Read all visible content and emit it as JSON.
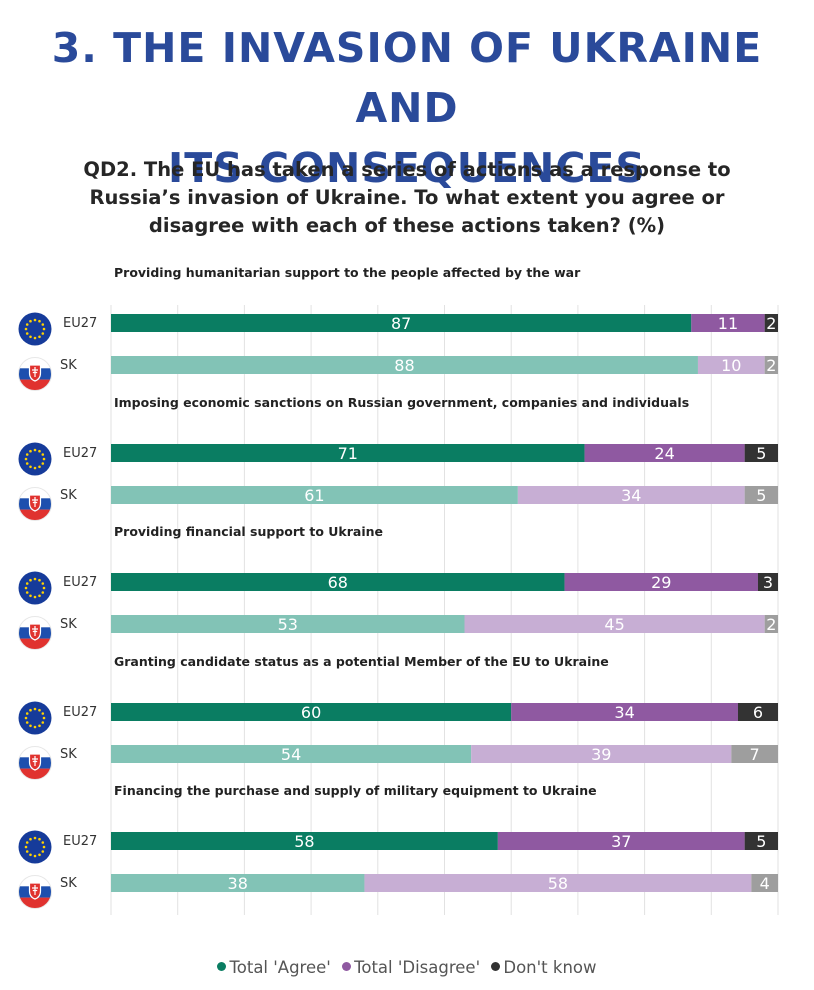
{
  "page": {
    "title_line1": "3. THE INVASION OF UKRAINE AND",
    "title_line2": "ITS CONSEQUENCES",
    "question": "QD2. The EU has taken a series of actions as a response to Russia’s invasion of Ukraine. To what extent you agree or disagree with each of these actions taken? (%)"
  },
  "colors": {
    "title": "#2a4a9a",
    "eu27_agree": "#0a7d62",
    "eu27_disagree": "#8f59a1",
    "eu27_dontknow": "#333333",
    "sk_agree": "#82c3b6",
    "sk_disagree": "#c7aed4",
    "sk_dontknow": "#9e9e9e",
    "eu_flag_bg": "#163b9a",
    "eu_flag_star": "#ffd200",
    "gridline": "#e2e2e2"
  },
  "legend": [
    {
      "label": "Total 'Agree'",
      "color": "#0a7d62"
    },
    {
      "label": "Total 'Disagree'",
      "color": "#8f59a1"
    },
    {
      "label": "Don't know",
      "color": "#333333"
    }
  ],
  "chart_data": {
    "type": "bar",
    "orientation": "horizontal",
    "stacked": true,
    "unit": "%",
    "xlim": [
      0,
      100
    ],
    "grid": true,
    "legend_position": "bottom",
    "series_names": [
      "Total 'Agree'",
      "Total 'Disagree'",
      "Don't know"
    ],
    "groups": [
      {
        "label": "Providing humanitarian support to the people affected by the war",
        "rows": [
          {
            "country": "EU27",
            "values": [
              87,
              11,
              2
            ]
          },
          {
            "country": "SK",
            "values": [
              88,
              10,
              2
            ]
          }
        ]
      },
      {
        "label": "Imposing economic sanctions on Russian government, companies and individuals",
        "rows": [
          {
            "country": "EU27",
            "values": [
              71,
              24,
              5
            ]
          },
          {
            "country": "SK",
            "values": [
              61,
              34,
              5
            ]
          }
        ]
      },
      {
        "label": "Providing financial support to Ukraine",
        "rows": [
          {
            "country": "EU27",
            "values": [
              68,
              29,
              3
            ]
          },
          {
            "country": "SK",
            "values": [
              53,
              45,
              2
            ]
          }
        ]
      },
      {
        "label": "Granting candidate status as a potential Member of the EU to Ukraine",
        "rows": [
          {
            "country": "EU27",
            "values": [
              60,
              34,
              6
            ]
          },
          {
            "country": "SK",
            "values": [
              54,
              39,
              7
            ]
          }
        ]
      },
      {
        "label": "Financing the purchase and supply of military equipment to Ukraine",
        "rows": [
          {
            "country": "EU27",
            "values": [
              58,
              37,
              5
            ]
          },
          {
            "country": "SK",
            "values": [
              38,
              58,
              4
            ]
          }
        ]
      }
    ]
  }
}
